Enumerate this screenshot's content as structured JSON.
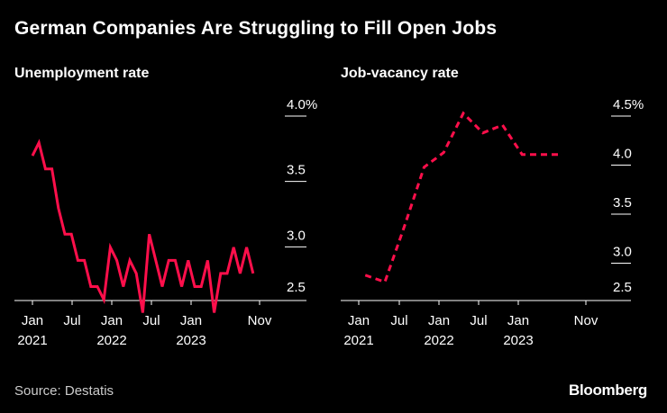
{
  "title": "German Companies Are Struggling to Fill Open Jobs",
  "source": "Source: Destatis",
  "brand": "Bloomberg",
  "colors": {
    "line": "#ff0f4b",
    "background": "#000000",
    "axis": "#ffffff"
  },
  "chart_data": [
    {
      "type": "line",
      "title": "Unemployment rate",
      "line_style": "solid",
      "x_start": "2021-01",
      "x_tick_labels": [
        "Jan",
        "Jul",
        "Jan",
        "Jul",
        "Jan",
        "Nov"
      ],
      "x_year_labels": [
        "2021",
        "2022",
        "2023"
      ],
      "y_tick_labels": [
        "4.0%",
        "3.5",
        "3.0",
        "2.5"
      ],
      "ylim": [
        2.5,
        4.0
      ],
      "series": [
        {
          "x": [
            "2021-01",
            "2021-02",
            "2021-03",
            "2021-04",
            "2021-05",
            "2021-06",
            "2021-07",
            "2021-08",
            "2021-09",
            "2021-10",
            "2021-11",
            "2021-12",
            "2022-01",
            "2022-02",
            "2022-03",
            "2022-04",
            "2022-05",
            "2022-06",
            "2022-07",
            "2022-08",
            "2022-09",
            "2022-10",
            "2022-11",
            "2022-12",
            "2023-01",
            "2023-02",
            "2023-03",
            "2023-04",
            "2023-05",
            "2023-06",
            "2023-07",
            "2023-08",
            "2023-09",
            "2023-10",
            "2023-11"
          ],
          "values": [
            3.6,
            3.7,
            3.5,
            3.5,
            3.2,
            3.0,
            3.0,
            2.8,
            2.8,
            2.6,
            2.6,
            2.5,
            2.9,
            2.8,
            2.6,
            2.8,
            2.7,
            2.4,
            3.0,
            2.8,
            2.6,
            2.8,
            2.8,
            2.6,
            2.8,
            2.6,
            2.6,
            2.8,
            2.4,
            2.7,
            2.7,
            2.9,
            2.7,
            2.9,
            2.7
          ]
        }
      ]
    },
    {
      "type": "line",
      "title": "Job-vacancy rate",
      "line_style": "dashed",
      "x_start": "2021-01",
      "x_tick_labels": [
        "Jan",
        "Jul",
        "Jan",
        "Jul",
        "Jan",
        "Nov"
      ],
      "x_year_labels": [
        "2021",
        "2022",
        "2023"
      ],
      "y_tick_labels": [
        "4.5%",
        "4.0",
        "3.5",
        "3.0",
        "2.5"
      ],
      "ylim": [
        2.5,
        4.5
      ],
      "series": [
        {
          "x": [
            "2021-Q1",
            "2021-Q2",
            "2021-Q3",
            "2021-Q4",
            "2022-Q1",
            "2022-Q2",
            "2022-Q3",
            "2022-Q4",
            "2023-Q1",
            "2023-Q2",
            "2023-Q3"
          ],
          "values": [
            2.75,
            2.68,
            3.25,
            3.85,
            4.0,
            4.4,
            4.2,
            4.28,
            3.98,
            3.98,
            3.98
          ]
        }
      ]
    }
  ]
}
